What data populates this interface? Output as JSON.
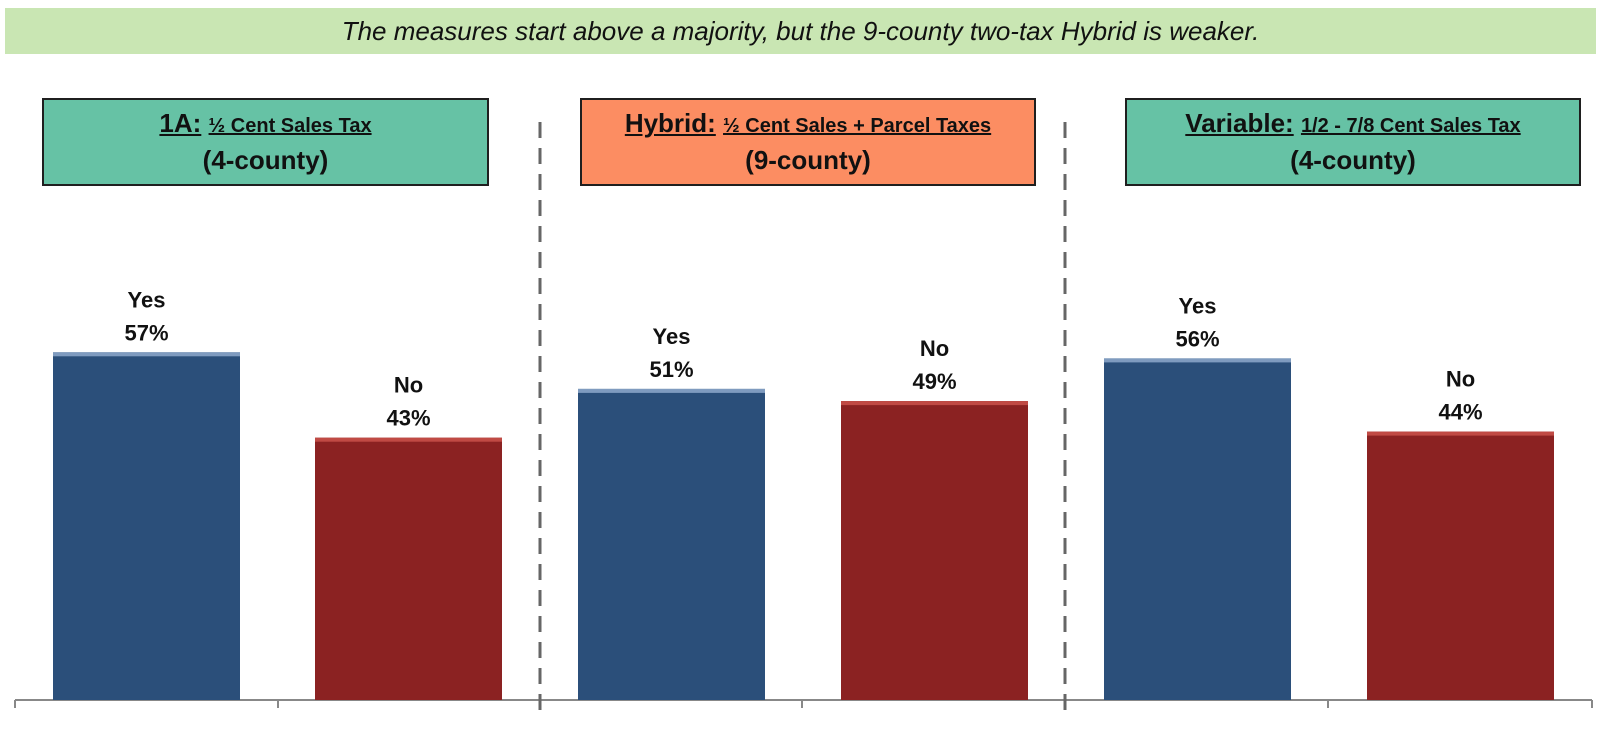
{
  "banner": {
    "text": "The measures start above a majority, but the 9-county two-tax Hybrid is weaker."
  },
  "colors": {
    "yes": "#2b4f7a",
    "yes_cap": "#7f9bbf",
    "no": "#8b2222",
    "no_cap": "#c04a44",
    "axis": "#888888",
    "divider": "#666666",
    "banner_bg": "#c9e6b3"
  },
  "panels": [
    {
      "name": "1A:",
      "desc": "½ Cent Sales Tax",
      "scope": "(4-county)",
      "color": "#66c2a5"
    },
    {
      "name": "Hybrid:",
      "desc": "½ Cent Sales + Parcel Taxes",
      "scope": "(9-county)",
      "color": "#fc8d62"
    },
    {
      "name": "Variable:",
      "desc": "1/2 - 7/8 Cent Sales Tax",
      "scope": "(4-county)",
      "color": "#66c2a5"
    }
  ],
  "chart_data": {
    "type": "bar",
    "ylim": [
      0,
      100
    ],
    "groups": [
      {
        "panel": 0,
        "bars": [
          {
            "category": "Yes",
            "value": 57,
            "label": "57%"
          },
          {
            "category": "No",
            "value": 43,
            "label": "43%"
          }
        ]
      },
      {
        "panel": 1,
        "bars": [
          {
            "category": "Yes",
            "value": 51,
            "label": "51%"
          },
          {
            "category": "No",
            "value": 49,
            "label": "49%"
          }
        ]
      },
      {
        "panel": 2,
        "bars": [
          {
            "category": "Yes",
            "value": 56,
            "label": "56%"
          },
          {
            "category": "No",
            "value": 44,
            "label": "44%"
          }
        ]
      }
    ]
  }
}
